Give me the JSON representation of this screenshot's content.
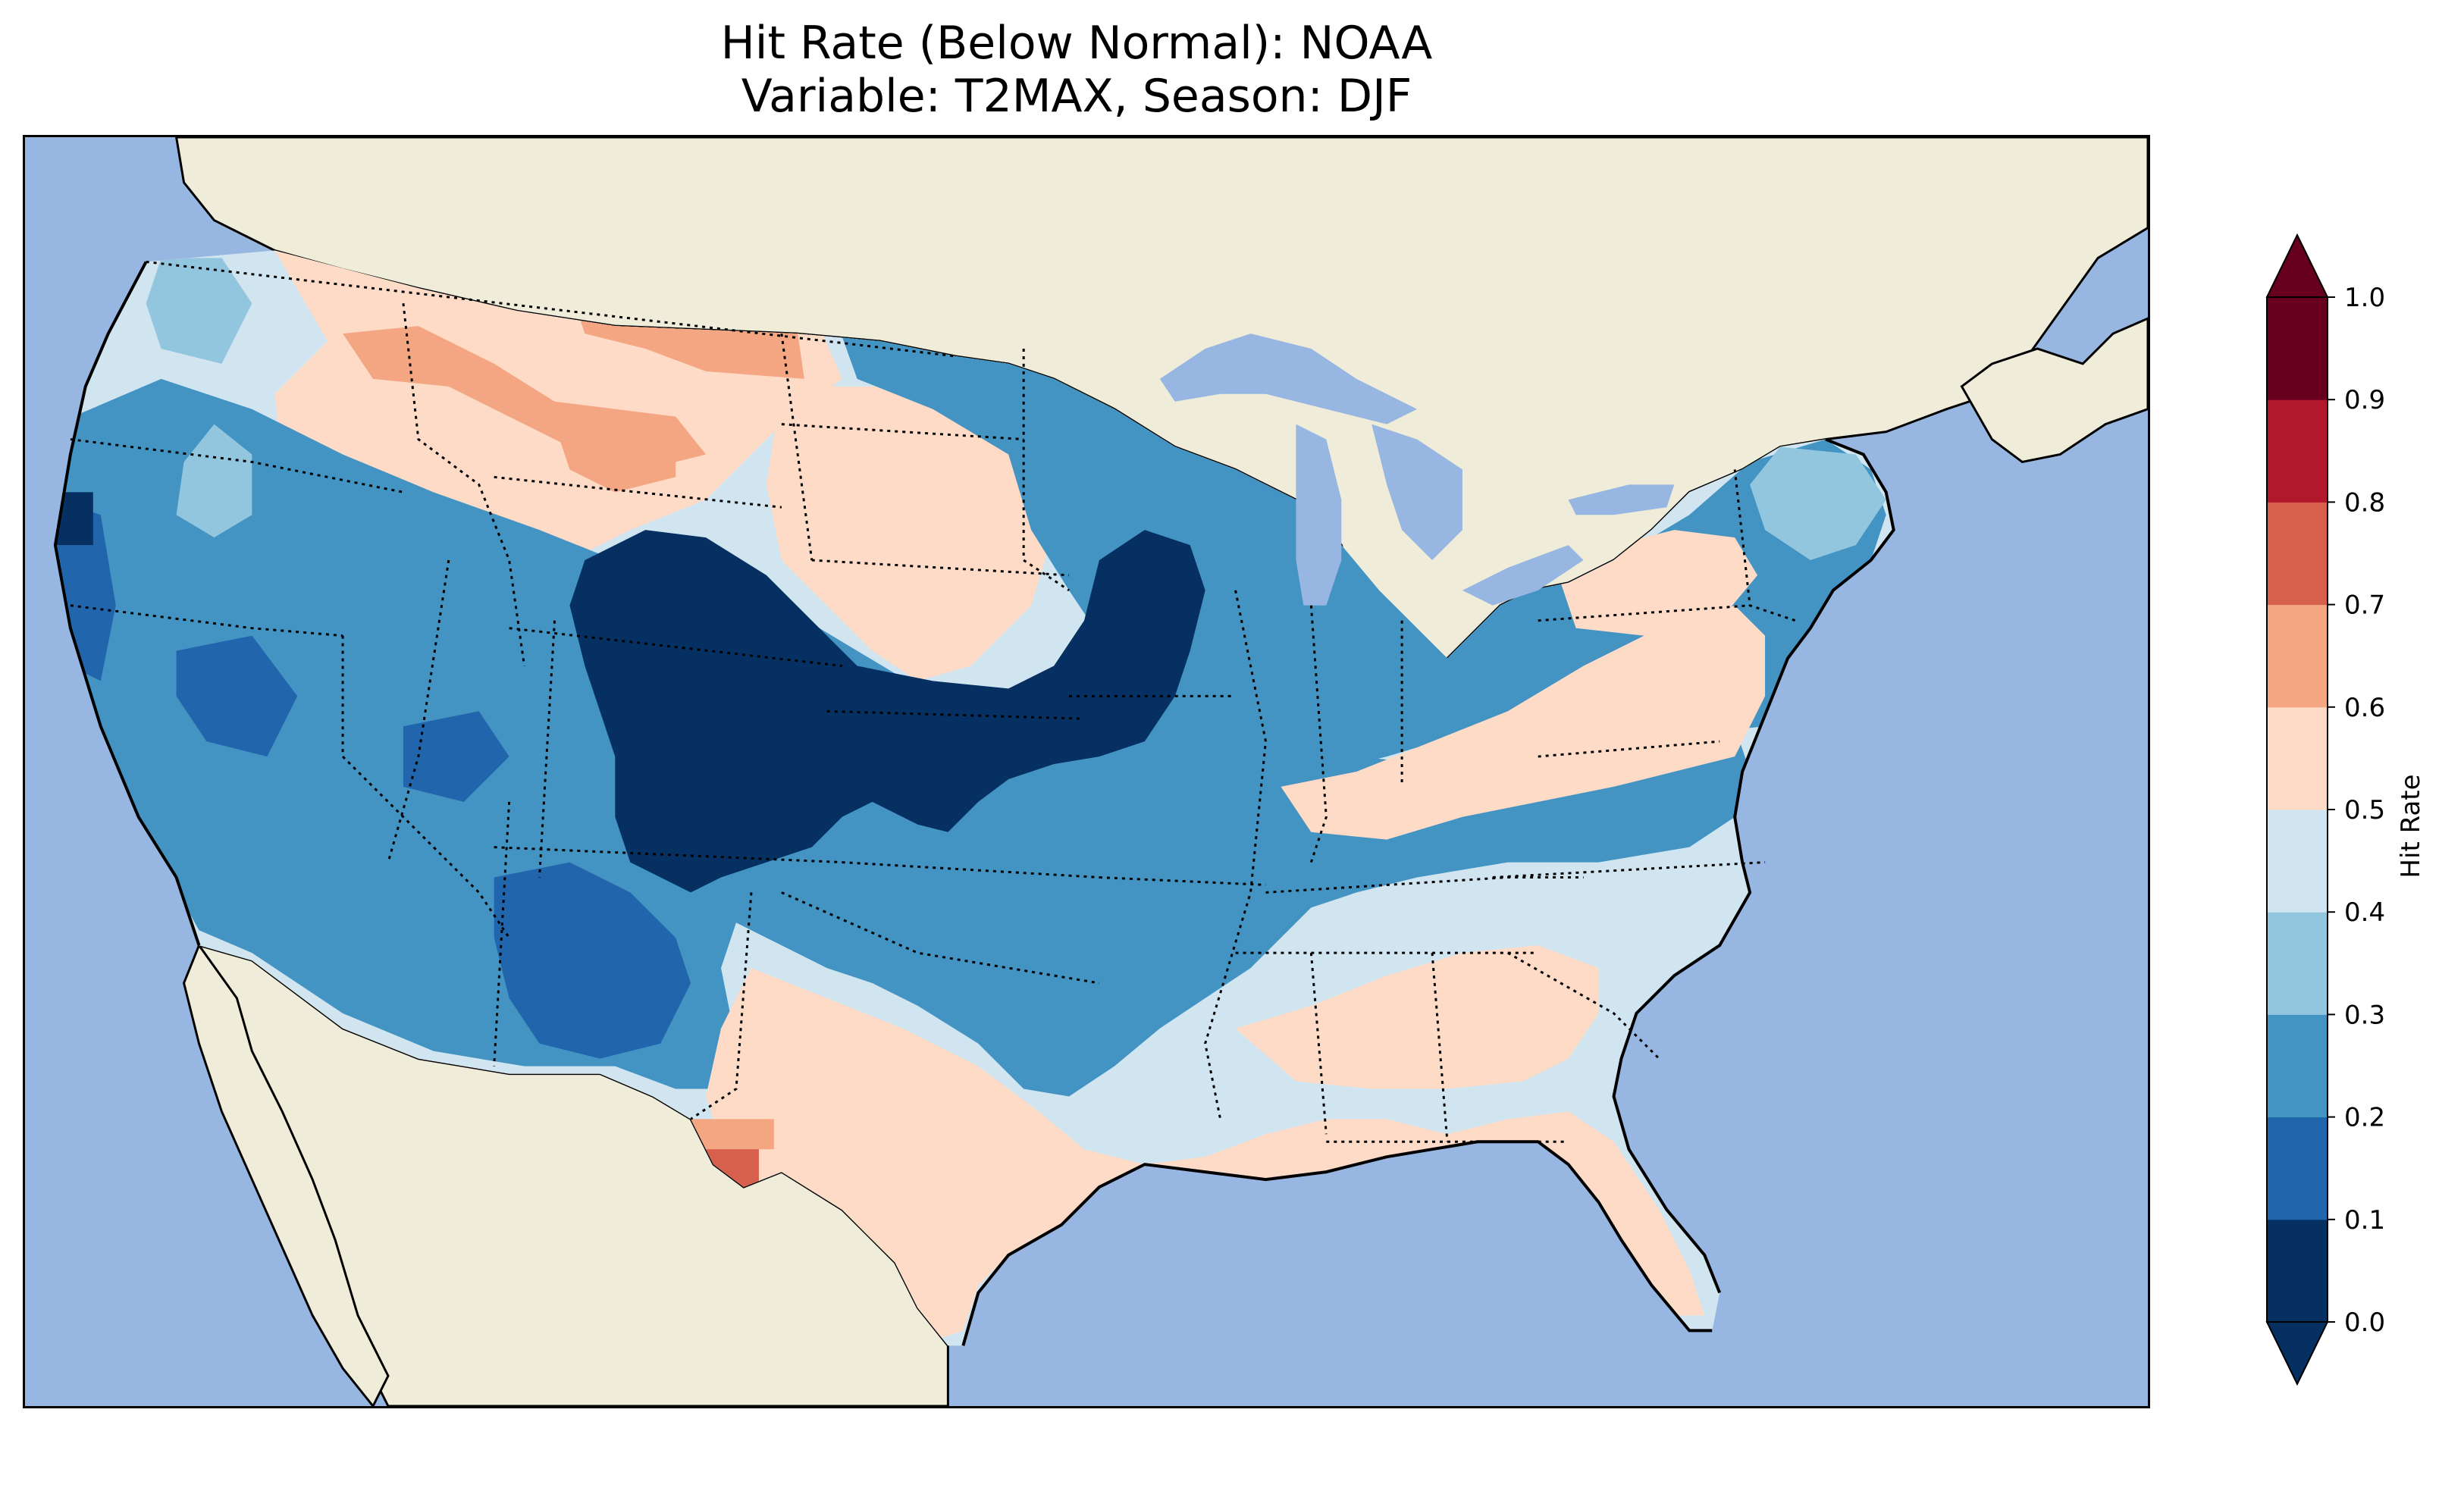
{
  "title": {
    "line1": "Hit Rate (Below Normal): NOAA",
    "line2": "Variable: T2MAX, Season: DJF"
  },
  "map": {
    "region": "Contiguous United States",
    "ocean_color": "#97b6e1",
    "land_color": "#efedda",
    "lake_color": "#97b6e1",
    "coastline_color": "#000000",
    "border_color": "#000000",
    "no_data_color": "#efedda"
  },
  "colorbar": {
    "label": "Hit Rate",
    "ticks": [
      "0.0",
      "0.1",
      "0.2",
      "0.3",
      "0.4",
      "0.5",
      "0.6",
      "0.7",
      "0.8",
      "0.9",
      "1.0"
    ],
    "colors": [
      "#053061",
      "#2166ac",
      "#4393c3",
      "#92c5de",
      "#d1e5f0",
      "#fddbc7",
      "#f4a582",
      "#d6604d",
      "#b2182b",
      "#67001f"
    ],
    "extend_under_color": "#053061",
    "extend_over_color": "#67001f"
  }
}
